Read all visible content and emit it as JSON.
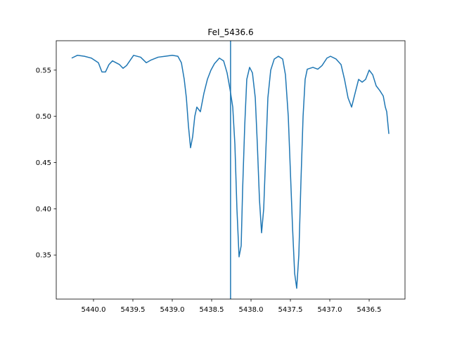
{
  "chart_data": {
    "type": "line",
    "title": "FeI_5436.6",
    "color": "#1f77b4",
    "x": [
      5440.277,
      5440.205,
      5440.116,
      5440.027,
      5439.938,
      5439.893,
      5439.848,
      5439.804,
      5439.759,
      5439.67,
      5439.625,
      5439.58,
      5439.491,
      5439.402,
      5439.33,
      5439.268,
      5439.179,
      5439.089,
      5439.0,
      5438.929,
      5438.884,
      5438.848,
      5438.821,
      5438.795,
      5438.768,
      5438.741,
      5438.714,
      5438.688,
      5438.643,
      5438.598,
      5438.554,
      5438.509,
      5438.464,
      5438.402,
      5438.348,
      5438.304,
      5438.268,
      5438.232,
      5438.205,
      5438.179,
      5438.152,
      5438.125,
      5438.107,
      5438.08,
      5438.054,
      5438.018,
      5437.982,
      5437.946,
      5437.92,
      5437.893,
      5437.866,
      5437.839,
      5437.813,
      5437.786,
      5437.75,
      5437.705,
      5437.652,
      5437.598,
      5437.563,
      5437.527,
      5437.5,
      5437.473,
      5437.446,
      5437.42,
      5437.393,
      5437.366,
      5437.339,
      5437.313,
      5437.286,
      5437.214,
      5437.152,
      5437.098,
      5437.036,
      5436.991,
      5436.92,
      5436.857,
      5436.813,
      5436.768,
      5436.723,
      5436.679,
      5436.634,
      5436.589,
      5436.545,
      5436.5,
      5436.455,
      5436.411,
      5436.366,
      5436.321,
      5436.295,
      5436.277,
      5436.25
    ],
    "values": [
      0.563,
      0.566,
      0.565,
      0.563,
      0.558,
      0.548,
      0.548,
      0.556,
      0.56,
      0.556,
      0.552,
      0.555,
      0.566,
      0.564,
      0.558,
      0.561,
      0.564,
      0.565,
      0.566,
      0.565,
      0.558,
      0.54,
      0.52,
      0.49,
      0.466,
      0.478,
      0.5,
      0.51,
      0.505,
      0.525,
      0.54,
      0.55,
      0.557,
      0.563,
      0.56,
      0.547,
      0.53,
      0.51,
      0.47,
      0.4,
      0.348,
      0.36,
      0.42,
      0.49,
      0.54,
      0.553,
      0.547,
      0.52,
      0.47,
      0.41,
      0.374,
      0.4,
      0.46,
      0.52,
      0.55,
      0.562,
      0.565,
      0.562,
      0.545,
      0.5,
      0.44,
      0.38,
      0.33,
      0.314,
      0.35,
      0.43,
      0.5,
      0.54,
      0.551,
      0.553,
      0.551,
      0.555,
      0.563,
      0.565,
      0.562,
      0.556,
      0.54,
      0.52,
      0.51,
      0.525,
      0.54,
      0.537,
      0.54,
      0.55,
      0.545,
      0.533,
      0.528,
      0.522,
      0.51,
      0.505,
      0.481
    ],
    "vline": 5438.26,
    "xlim": [
      5440.473,
      5436.045
    ],
    "ylim": [
      0.3023,
      0.5818
    ],
    "xticks": [
      {
        "value": 5440.0,
        "label": "5440.0"
      },
      {
        "value": 5439.5,
        "label": "5439.5"
      },
      {
        "value": 5439.0,
        "label": "5439.0"
      },
      {
        "value": 5438.5,
        "label": "5438.5"
      },
      {
        "value": 5438.0,
        "label": "5438.0"
      },
      {
        "value": 5437.5,
        "label": "5437.5"
      },
      {
        "value": 5437.0,
        "label": "5437.0"
      },
      {
        "value": 5436.5,
        "label": "5436.5"
      }
    ],
    "yticks": [
      0.35,
      {
        "value": 0.4,
        "label": "0.40"
      },
      0.45,
      {
        "value": 0.5,
        "label": "0.50"
      },
      0.55
    ]
  }
}
